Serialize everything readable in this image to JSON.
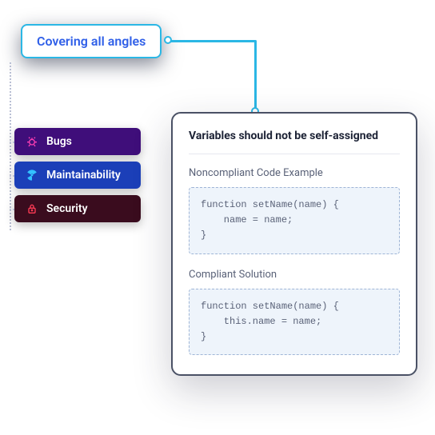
{
  "header": {
    "label": "Covering all angles",
    "text_color": "#2f5fe8",
    "border_color": "#2bb7e5",
    "bg_color": "#ffffff"
  },
  "connector": {
    "color": "#2bb7e5",
    "dot_border": "#2bb7e5",
    "dot_fill": "#ffffff",
    "dotted_color": "#b9bfd4"
  },
  "categories": [
    {
      "id": "bugs",
      "label": "Bugs",
      "bg": "#3f0e7a",
      "icon_color": "#ff3fb4",
      "icon": "bug"
    },
    {
      "id": "maintainability",
      "label": "Maintainability",
      "bg": "#1b3fb8",
      "icon_color": "#33c2ff",
      "icon": "radiation"
    },
    {
      "id": "security",
      "label": "Security",
      "bg": "#3a0c1e",
      "icon_color": "#ff3b55",
      "icon": "lock"
    }
  ],
  "detail": {
    "title": "Variables should not be self-assigned",
    "title_color": "#1c2235",
    "card_border": "#4a5165",
    "noncompliant": {
      "label": "Noncompliant Code Example",
      "code": "function setName(name) {\n    name = name;\n}",
      "bg": "#eef4fb",
      "border": "#9fb5d6"
    },
    "compliant": {
      "label": "Compliant Solution",
      "code": "function setName(name) {\n    this.name = name;\n}",
      "bg": "#eef4fb",
      "border": "#9fb5d6"
    }
  }
}
